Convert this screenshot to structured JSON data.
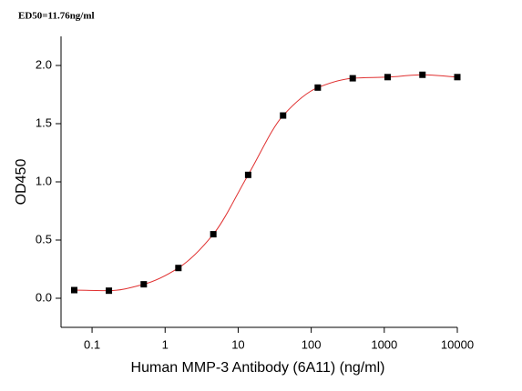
{
  "chart_data": {
    "type": "scatter",
    "annotation": "ED50=11.76ng/ml",
    "x_label": "Human MMP-3 Antibody (6A11) (ng/ml)",
    "y_label": "OD450",
    "x": [
      0.057,
      0.17,
      0.51,
      1.52,
      4.57,
      13.7,
      41.2,
      123,
      370,
      1111,
      3333,
      10000
    ],
    "values": [
      0.07,
      0.065,
      0.12,
      0.26,
      0.55,
      1.06,
      1.57,
      1.81,
      1.89,
      1.9,
      1.92,
      1.9
    ],
    "color": "#000000",
    "line_color": "#e03030",
    "xlog": true,
    "xlim": [
      0.0376,
      10000
    ],
    "xticks": [
      0.1,
      1,
      10,
      100,
      1000,
      10000
    ],
    "ylim": [
      -0.25,
      2.25
    ],
    "yticks": [
      {
        "value": 0,
        "label": "0.0"
      },
      0.5,
      {
        "value": 1,
        "label": "1.0"
      },
      1.5,
      {
        "value": 2,
        "label": "2.0"
      }
    ]
  }
}
